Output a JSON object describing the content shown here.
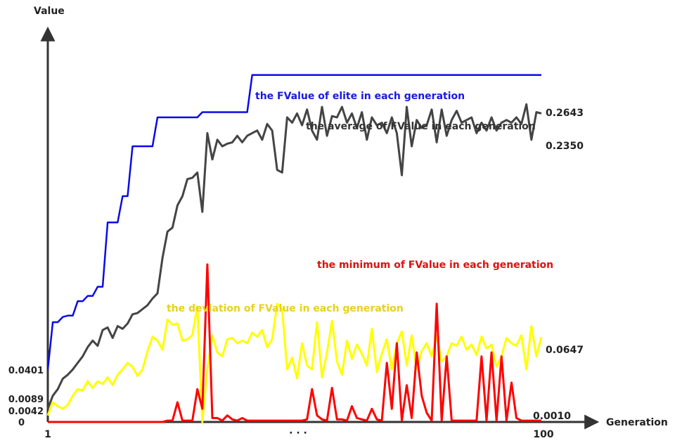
{
  "chart_data": {
    "type": "line",
    "ylabel": "Value",
    "xlabel": "Generation",
    "x_ticks": [
      "1",
      "100"
    ],
    "x_ellipsis": "· · ·",
    "y_ticks": [
      "0",
      "0.0042",
      "0.0089",
      "0.0401"
    ],
    "x_range": [
      1,
      100
    ],
    "y_range": [
      0,
      0.3
    ],
    "grid": false,
    "series": [
      {
        "name": "the FValue of elite in each generation",
        "end_label": "0.2643",
        "color": "#0a0ae6",
        "values": [
          0.04,
          0.076,
          0.076,
          0.08,
          0.081,
          0.081,
          0.092,
          0.092,
          0.096,
          0.096,
          0.103,
          0.103,
          0.152,
          0.152,
          0.152,
          0.172,
          0.172,
          0.21,
          0.21,
          0.21,
          0.21,
          0.21,
          0.232,
          0.232,
          0.232,
          0.232,
          0.232,
          0.232,
          0.232,
          0.232,
          0.232,
          0.236,
          0.236,
          0.236,
          0.236,
          0.236,
          0.236,
          0.236,
          0.236,
          0.236,
          0.236,
          0.2643,
          0.2643,
          0.2643,
          0.2643,
          0.2643,
          0.2643,
          0.2643,
          0.2643,
          0.2643,
          0.2643,
          0.2643,
          0.2643,
          0.2643,
          0.2643,
          0.2643,
          0.2643,
          0.2643,
          0.2643,
          0.2643,
          0.2643,
          0.2643,
          0.2643,
          0.2643,
          0.2643,
          0.2643,
          0.2643,
          0.2643,
          0.2643,
          0.2643,
          0.2643,
          0.2643,
          0.2643,
          0.2643,
          0.2643,
          0.2643,
          0.2643,
          0.2643,
          0.2643,
          0.2643,
          0.2643,
          0.2643,
          0.2643,
          0.2643,
          0.2643,
          0.2643,
          0.2643,
          0.2643,
          0.2643,
          0.2643,
          0.2643,
          0.2643,
          0.2643,
          0.2643,
          0.2643,
          0.2643,
          0.2643,
          0.2643,
          0.2643,
          0.2643
        ]
      },
      {
        "name": "the average of FValue in each generation",
        "end_label": "0.2350",
        "color": "#444444",
        "values": [
          0.01,
          0.02,
          0.025,
          0.033,
          0.036,
          0.04,
          0.045,
          0.05,
          0.057,
          0.062,
          0.058,
          0.07,
          0.072,
          0.064,
          0.073,
          0.071,
          0.075,
          0.082,
          0.083,
          0.086,
          0.089,
          0.094,
          0.098,
          0.125,
          0.145,
          0.148,
          0.165,
          0.172,
          0.185,
          0.186,
          0.19,
          0.16,
          0.22,
          0.2,
          0.215,
          0.21,
          0.212,
          0.213,
          0.218,
          0.213,
          0.218,
          0.22,
          0.222,
          0.215,
          0.227,
          0.222,
          0.192,
          0.19,
          0.232,
          0.228,
          0.235,
          0.226,
          0.238,
          0.222,
          0.215,
          0.24,
          0.218,
          0.233,
          0.232,
          0.24,
          0.228,
          0.235,
          0.224,
          0.236,
          0.215,
          0.232,
          0.226,
          0.228,
          0.22,
          0.232,
          0.22,
          0.188,
          0.24,
          0.21,
          0.23,
          0.224,
          0.226,
          0.238,
          0.213,
          0.238,
          0.218,
          0.23,
          0.237,
          0.228,
          0.23,
          0.232,
          0.22,
          0.228,
          0.222,
          0.232,
          0.222,
          0.228,
          0.23,
          0.228,
          0.232,
          0.227,
          0.242,
          0.215,
          0.236,
          0.235
        ]
      },
      {
        "name": "the deviation of FValue in each generation",
        "end_label": "0.0647",
        "color": "#ffff00",
        "values": [
          0.005,
          0.015,
          0.012,
          0.01,
          0.013,
          0.02,
          0.025,
          0.024,
          0.031,
          0.026,
          0.031,
          0.029,
          0.034,
          0.028,
          0.036,
          0.04,
          0.045,
          0.042,
          0.035,
          0.04,
          0.054,
          0.065,
          0.062,
          0.055,
          0.078,
          0.074,
          0.075,
          0.062,
          0.063,
          0.066,
          0.088,
          0.0,
          0.04,
          0.066,
          0.053,
          0.05,
          0.063,
          0.064,
          0.06,
          0.062,
          0.06,
          0.068,
          0.065,
          0.07,
          0.057,
          0.063,
          0.09,
          0.086,
          0.04,
          0.049,
          0.033,
          0.06,
          0.043,
          0.04,
          0.076,
          0.034,
          0.053,
          0.077,
          0.046,
          0.036,
          0.062,
          0.048,
          0.059,
          0.052,
          0.043,
          0.071,
          0.038,
          0.052,
          0.063,
          0.04,
          0.06,
          0.069,
          0.043,
          0.066,
          0.04,
          0.054,
          0.06,
          0.05,
          0.066,
          0.046,
          0.05,
          0.06,
          0.058,
          0.065,
          0.055,
          0.059,
          0.051,
          0.065,
          0.056,
          0.059,
          0.042,
          0.05,
          0.064,
          0.06,
          0.058,
          0.066,
          0.04,
          0.073,
          0.05,
          0.0647
        ]
      },
      {
        "name": "the minimum of FValue in each generation",
        "end_label": "0.0010",
        "color": "#ff0000",
        "values": [
          0,
          0,
          0,
          0,
          0,
          0,
          0,
          0,
          0,
          0,
          0,
          0,
          0,
          0,
          0,
          0,
          0,
          0,
          0,
          0,
          0,
          0,
          0,
          0,
          0.001,
          0.001,
          0.015,
          0.001,
          0.001,
          0.001,
          0.025,
          0.01,
          0.12,
          0.003,
          0.003,
          0.001,
          0.005,
          0.002,
          0.001,
          0.003,
          0.001,
          0.001,
          0.001,
          0.001,
          0.001,
          0.001,
          0.001,
          0.001,
          0.001,
          0.001,
          0.001,
          0.001,
          0.002,
          0.025,
          0.005,
          0.002,
          0.001,
          0.026,
          0.002,
          0.002,
          0.001,
          0.012,
          0.003,
          0.002,
          0.001,
          0.01,
          0.002,
          0.001,
          0.045,
          0.01,
          0.06,
          0.001,
          0.028,
          0.003,
          0.053,
          0.02,
          0.007,
          0.001,
          0.09,
          0.001,
          0.05,
          0.001,
          0.001,
          0.001,
          0.001,
          0.001,
          0.001,
          0.05,
          0.001,
          0.053,
          0.001,
          0.05,
          0.001,
          0.03,
          0.003,
          0.001,
          0.001,
          0.001,
          0.001,
          0.001
        ]
      }
    ]
  }
}
